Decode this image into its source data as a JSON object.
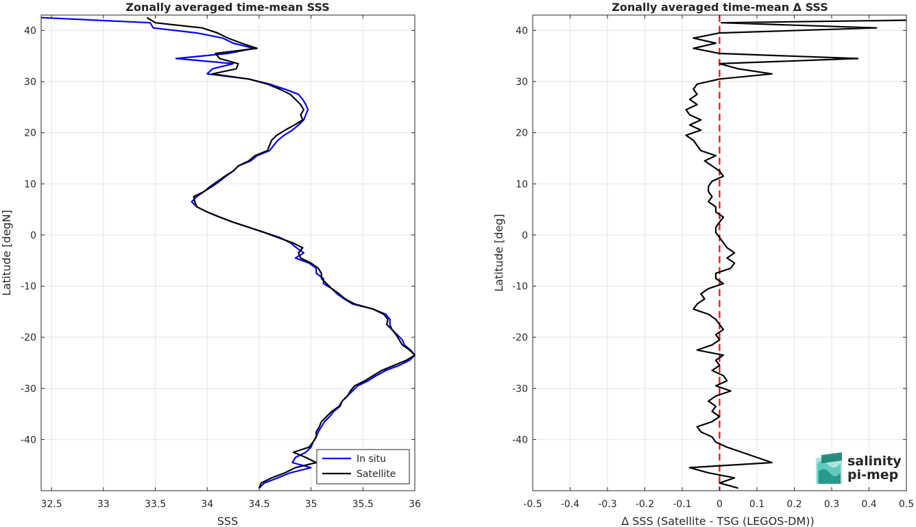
{
  "chart_data": [
    {
      "type": "line",
      "title": "Zonally averaged time-mean SSS",
      "xlabel": "SSS",
      "ylabel": "Latitude [degN]",
      "xlim": [
        32.4,
        36.0
      ],
      "ylim": [
        -50,
        43
      ],
      "xticks": [
        32.5,
        33,
        33.5,
        34,
        34.5,
        35,
        35.5,
        36
      ],
      "yticks": [
        -40,
        -30,
        -20,
        -10,
        0,
        10,
        20,
        30,
        40
      ],
      "grid": true,
      "legend": "bottom-right",
      "series": [
        {
          "name": "In situ",
          "color": "#0000ff",
          "lat": [
            42.5,
            41.5,
            40.5,
            39.5,
            38.5,
            37.5,
            36.5,
            35.5,
            34.5,
            33.5,
            32.5,
            31.5,
            30.5,
            29.5,
            28.5,
            27.5,
            26.5,
            25.5,
            24.5,
            23.5,
            22.5,
            21.5,
            20.5,
            19.5,
            18.5,
            17.5,
            16.5,
            15.5,
            14.5,
            13.5,
            12.5,
            11.5,
            10.5,
            9.5,
            8.5,
            7.5,
            6.5,
            5.5,
            4.5,
            3.5,
            2.5,
            1.5,
            0.5,
            -0.5,
            -1.5,
            -2.5,
            -3.5,
            -4.5,
            -5.5,
            -6.5,
            -7.5,
            -8.5,
            -9.5,
            -10.5,
            -11.5,
            -12.5,
            -13.5,
            -14.5,
            -15.5,
            -16.5,
            -17.5,
            -18.5,
            -19.5,
            -20.5,
            -21.5,
            -22.5,
            -23.5,
            -24.5,
            -25.5,
            -26.5,
            -27.5,
            -28.5,
            -29.5,
            -30.5,
            -31.5,
            -32.5,
            -33.5,
            -34.5,
            -35.5,
            -36.5,
            -37.5,
            -38.5,
            -39.5,
            -40.5,
            -41.5,
            -42.5,
            -43.5,
            -44.5,
            -45.5,
            -46.5,
            -47.5,
            -48.5,
            -49.5
          ],
          "sss": [
            32.4,
            33.45,
            33.48,
            33.9,
            34.15,
            34.25,
            34.45,
            34.2,
            33.7,
            34.25,
            34.05,
            34.0,
            34.4,
            34.6,
            34.75,
            34.88,
            34.92,
            34.95,
            34.97,
            34.95,
            34.93,
            34.88,
            34.82,
            34.74,
            34.68,
            34.64,
            34.6,
            34.48,
            34.42,
            34.3,
            34.25,
            34.18,
            34.12,
            34.05,
            33.97,
            33.9,
            33.85,
            33.9,
            34.0,
            34.12,
            34.25,
            34.4,
            34.55,
            34.7,
            34.8,
            34.86,
            34.93,
            34.85,
            34.98,
            35.05,
            35.05,
            35.12,
            35.12,
            35.2,
            35.25,
            35.32,
            35.4,
            35.6,
            35.72,
            35.76,
            35.76,
            35.78,
            35.83,
            35.88,
            35.9,
            35.96,
            36.0,
            35.95,
            35.85,
            35.72,
            35.63,
            35.55,
            35.45,
            35.4,
            35.35,
            35.3,
            35.28,
            35.22,
            35.18,
            35.13,
            35.1,
            35.07,
            35.05,
            35.02,
            35.0,
            34.95,
            34.85,
            34.82,
            35.0,
            34.8,
            34.68,
            34.55,
            34.5
          ]
        },
        {
          "name": "Satellite",
          "color": "#000000",
          "lat": [
            42.5,
            41.5,
            40.5,
            39.5,
            38.5,
            37.5,
            36.5,
            35.5,
            34.5,
            33.5,
            32.5,
            31.5,
            30.5,
            29.5,
            28.5,
            27.5,
            26.5,
            25.5,
            24.5,
            23.5,
            22.5,
            21.5,
            20.5,
            19.5,
            18.5,
            17.5,
            16.5,
            15.5,
            14.5,
            13.5,
            12.5,
            11.5,
            10.5,
            9.5,
            8.5,
            7.5,
            6.5,
            5.5,
            4.5,
            3.5,
            2.5,
            1.5,
            0.5,
            -0.5,
            -1.5,
            -2.5,
            -3.5,
            -4.5,
            -5.5,
            -6.5,
            -7.5,
            -8.5,
            -9.5,
            -10.5,
            -11.5,
            -12.5,
            -13.5,
            -14.5,
            -15.5,
            -16.5,
            -17.5,
            -18.5,
            -19.5,
            -20.5,
            -21.5,
            -22.5,
            -23.5,
            -24.5,
            -25.5,
            -26.5,
            -27.5,
            -28.5,
            -29.5,
            -30.5,
            -31.5,
            -32.5,
            -33.5,
            -34.5,
            -35.5,
            -36.5,
            -37.5,
            -38.5,
            -39.5,
            -40.5,
            -41.5,
            -42.5,
            -43.5,
            -44.5,
            -45.5,
            -46.5,
            -47.5,
            -48.5,
            -49.5
          ],
          "sss": [
            33.42,
            33.5,
            33.95,
            34.1,
            34.2,
            34.33,
            34.48,
            34.08,
            34.12,
            34.3,
            34.28,
            34.05,
            34.4,
            34.58,
            34.7,
            34.8,
            34.85,
            34.9,
            34.93,
            34.9,
            34.92,
            34.84,
            34.75,
            34.67,
            34.62,
            34.6,
            34.58,
            34.46,
            34.4,
            34.3,
            34.25,
            34.17,
            34.1,
            34.03,
            33.97,
            33.87,
            33.88,
            33.9,
            34.0,
            34.12,
            34.25,
            34.4,
            34.55,
            34.68,
            34.82,
            34.92,
            34.88,
            34.9,
            35.0,
            35.07,
            35.1,
            35.1,
            35.15,
            35.2,
            35.27,
            35.33,
            35.42,
            35.6,
            35.7,
            35.74,
            35.73,
            35.78,
            35.82,
            35.85,
            35.88,
            35.95,
            36.0,
            35.92,
            35.8,
            35.68,
            35.6,
            35.52,
            35.42,
            35.38,
            35.35,
            35.3,
            35.27,
            35.2,
            35.15,
            35.1,
            35.08,
            35.05,
            35.05,
            35.02,
            34.98,
            34.83,
            34.95,
            35.05,
            34.85,
            34.75,
            34.62,
            34.52,
            34.5
          ]
        }
      ]
    },
    {
      "type": "line",
      "title": "Zonally averaged time-mean Δ SSS",
      "xlabel": "Δ SSS (Satellite - TSG (LEGOS-DM))",
      "ylabel": "Latitude [deg]",
      "xlim": [
        -0.5,
        0.5
      ],
      "ylim": [
        -50,
        43
      ],
      "xticks": [
        -0.5,
        -0.4,
        -0.3,
        -0.2,
        -0.1,
        0,
        0.1,
        0.2,
        0.3,
        0.4,
        0.5
      ],
      "xticklabels": [
        "-0.5",
        "-0.4",
        "-0.3",
        "-0.2",
        "-0.1",
        "0",
        "0.1",
        "0.2",
        "0.3",
        "0.4",
        "0.5"
      ],
      "yticks": [
        -40,
        -30,
        -20,
        -10,
        0,
        10,
        20,
        30,
        40
      ],
      "grid": true,
      "reference_line": {
        "x": 0,
        "color": "#ff0000",
        "style": "dashed"
      },
      "series": [
        {
          "color": "#000000",
          "lat": [
            42.0,
            41.5,
            40.5,
            39.5,
            38.5,
            37.5,
            36.5,
            35.5,
            34.5,
            33.5,
            32.5,
            31.5,
            30.5,
            29.5,
            28.5,
            27.5,
            26.5,
            25.5,
            24.5,
            23.5,
            22.5,
            21.5,
            20.5,
            19.5,
            18.5,
            17.5,
            16.5,
            15.5,
            14.5,
            13.5,
            12.5,
            11.5,
            10.5,
            9.5,
            8.5,
            7.5,
            6.5,
            5.5,
            4.5,
            3.5,
            2.5,
            1.5,
            0.5,
            -0.5,
            -1.5,
            -2.5,
            -3.5,
            -4.5,
            -5.5,
            -6.5,
            -7.5,
            -8.5,
            -9.5,
            -10.5,
            -11.5,
            -12.5,
            -13.5,
            -14.5,
            -15.5,
            -16.5,
            -17.5,
            -18.5,
            -19.5,
            -20.5,
            -21.5,
            -22.5,
            -23.5,
            -24.5,
            -25.5,
            -26.5,
            -27.5,
            -28.5,
            -29.5,
            -30.5,
            -31.5,
            -32.5,
            -33.5,
            -34.5,
            -35.5,
            -36.5,
            -37.5,
            -38.5,
            -39.5,
            -40.5,
            -41.5,
            -42.5,
            -43.5,
            -44.5,
            -45.5,
            -46.5,
            -47.5,
            -48.5,
            -49.5
          ],
          "dsss": [
            0.5,
            0.005,
            0.42,
            0.0,
            -0.07,
            -0.01,
            -0.07,
            0.0,
            0.37,
            0.0,
            0.05,
            0.14,
            0.0,
            -0.06,
            -0.07,
            -0.06,
            -0.08,
            -0.06,
            -0.09,
            -0.08,
            -0.05,
            -0.08,
            -0.05,
            -0.09,
            -0.07,
            -0.06,
            -0.05,
            -0.01,
            -0.04,
            -0.02,
            0.0,
            0.01,
            -0.02,
            -0.03,
            -0.03,
            -0.02,
            -0.03,
            -0.01,
            -0.01,
            0.01,
            0.0,
            -0.01,
            -0.01,
            0.0,
            0.01,
            0.02,
            0.04,
            0.02,
            0.04,
            0.03,
            -0.01,
            -0.01,
            0.01,
            -0.03,
            -0.05,
            -0.04,
            -0.06,
            -0.07,
            -0.03,
            -0.01,
            0.0,
            0.01,
            -0.01,
            0.0,
            -0.02,
            -0.06,
            0.01,
            -0.01,
            0.0,
            -0.02,
            0.01,
            0.02,
            -0.01,
            0.03,
            -0.01,
            -0.03,
            -0.01,
            -0.02,
            0.0,
            -0.02,
            -0.06,
            -0.05,
            -0.02,
            -0.01,
            0.02,
            0.06,
            0.1,
            0.14,
            -0.08,
            -0.03,
            0.04,
            0.0,
            0.05
          ]
        }
      ]
    }
  ],
  "logo": {
    "line1": "salinity",
    "line2": "pi-mep",
    "color1": "#21b3a3",
    "color2": "#1a7f70"
  }
}
